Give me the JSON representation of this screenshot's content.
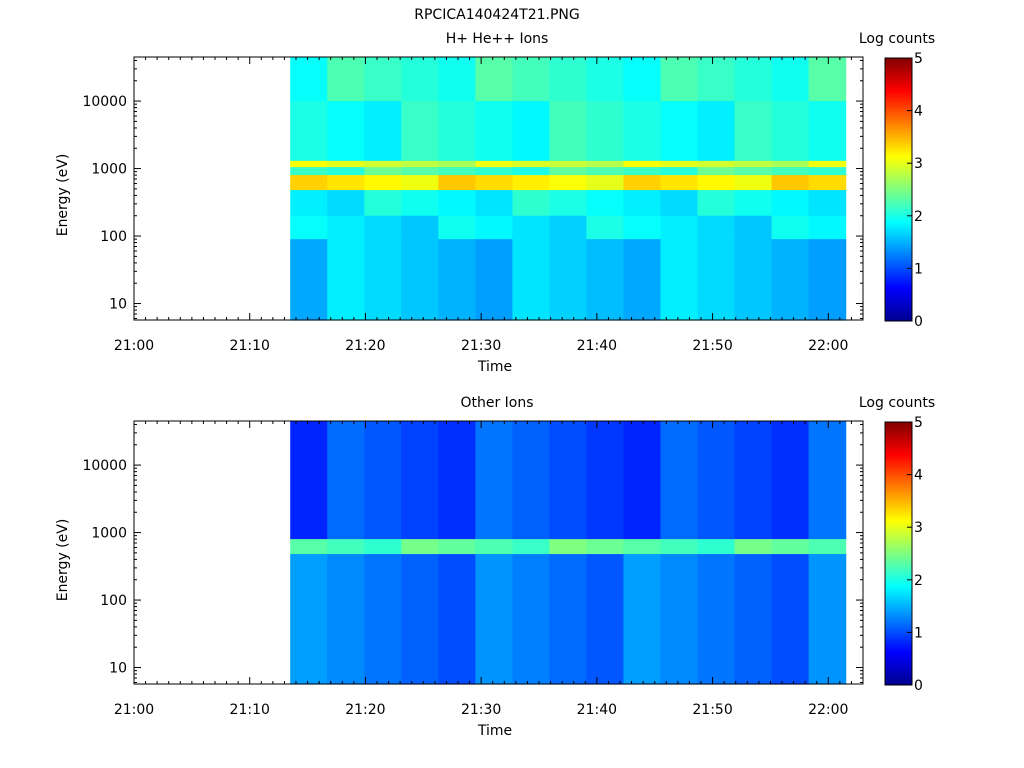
{
  "figure_title": "RPCICA140424T21.PNG",
  "colorbar_label": "Log counts",
  "colorbar_ticks": [
    "0",
    "1",
    "2",
    "3",
    "4",
    "5"
  ],
  "chart_data": [
    {
      "type": "heatmap",
      "title": "H+ He++ Ions",
      "xlabel": "Time",
      "ylabel": "Energy (eV)",
      "x_ticks": [
        "21:00",
        "21:10",
        "21:20",
        "21:30",
        "21:40",
        "21:50",
        "22:00"
      ],
      "y_ticks": [
        "10",
        "100",
        "1000",
        "10000"
      ],
      "yscale": "log",
      "ylim": [
        5.7,
        45000
      ],
      "xlim": [
        "21:00",
        "22:03"
      ],
      "data_start": "21:13.5",
      "data_end": "22:01.5",
      "colorbar_range": [
        0,
        5
      ],
      "time_bins": 15,
      "energy_rows_high_to_low": [
        {
          "energy_range": [
            10000,
            45000
          ],
          "log_counts": 2.1
        },
        {
          "energy_range": [
            1300,
            10000
          ],
          "log_counts": 2.0
        },
        {
          "energy_range": [
            1050,
            1300
          ],
          "log_counts": 2.9
        },
        {
          "energy_range": [
            800,
            1050
          ],
          "log_counts": 2.2
        },
        {
          "energy_range": [
            480,
            800
          ],
          "log_counts": 3.2
        },
        {
          "energy_range": [
            200,
            480
          ],
          "log_counts": 1.9
        },
        {
          "energy_range": [
            90,
            200
          ],
          "log_counts": 1.8
        },
        {
          "energy_range": [
            5.7,
            90
          ],
          "log_counts": 1.6
        }
      ]
    },
    {
      "type": "heatmap",
      "title": "Other Ions",
      "xlabel": "Time",
      "ylabel": "Energy (eV)",
      "x_ticks": [
        "21:00",
        "21:10",
        "21:20",
        "21:30",
        "21:40",
        "21:50",
        "22:00"
      ],
      "y_ticks": [
        "10",
        "100",
        "1000",
        "10000"
      ],
      "yscale": "log",
      "ylim": [
        5.7,
        45000
      ],
      "xlim": [
        "21:00",
        "22:03"
      ],
      "data_start": "21:13.5",
      "data_end": "22:01.5",
      "colorbar_range": [
        0,
        5
      ],
      "time_bins": 15,
      "energy_rows_high_to_low": [
        {
          "energy_range": [
            800,
            45000
          ],
          "log_counts": 1.0
        },
        {
          "energy_range": [
            480,
            800
          ],
          "log_counts": 2.3
        },
        {
          "energy_range": [
            5.7,
            480
          ],
          "log_counts": 1.2
        }
      ]
    }
  ]
}
